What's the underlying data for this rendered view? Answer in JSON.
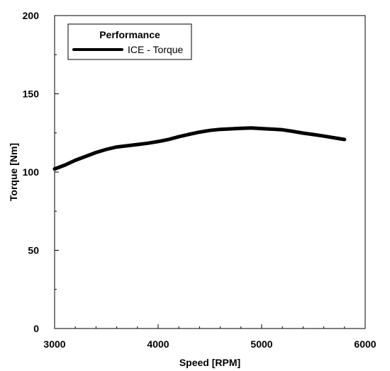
{
  "chart_data": {
    "type": "line",
    "xlabel": "Speed [RPM]",
    "ylabel": "Torque [Nm]",
    "xlim": [
      3000,
      6000
    ],
    "ylim": [
      0,
      200
    ],
    "x_major_ticks": [
      3000,
      4000,
      5000,
      6000
    ],
    "x_minor_ticks": [
      3200,
      3400,
      3600,
      3800,
      4200,
      4400,
      4600,
      4800,
      5200,
      5400,
      5600,
      5800
    ],
    "y_major_ticks": [
      0,
      50,
      100,
      150,
      200
    ],
    "y_minor_ticks": [
      25,
      75,
      125,
      175
    ],
    "grid": false,
    "legend": {
      "title": "Performance",
      "placement": "top-left"
    },
    "series": [
      {
        "name": "ICE - Torque",
        "color": "#000000",
        "x": [
          3000,
          3100,
          3200,
          3300,
          3400,
          3500,
          3600,
          3700,
          3800,
          3900,
          4000,
          4100,
          4200,
          4300,
          4400,
          4500,
          4600,
          4700,
          4800,
          4900,
          5000,
          5100,
          5200,
          5300,
          5400,
          5500,
          5600,
          5700,
          5800
        ],
        "y": [
          102,
          104.5,
          107.5,
          110,
          112.5,
          114.5,
          116,
          116.8,
          117.6,
          118.4,
          119.5,
          120.8,
          122.6,
          124.1,
          125.5,
          126.6,
          127.3,
          127.6,
          127.9,
          128.2,
          127.8,
          127.4,
          127.0,
          126.0,
          124.9,
          124.0,
          123.0,
          121.9,
          120.8
        ]
      }
    ]
  }
}
